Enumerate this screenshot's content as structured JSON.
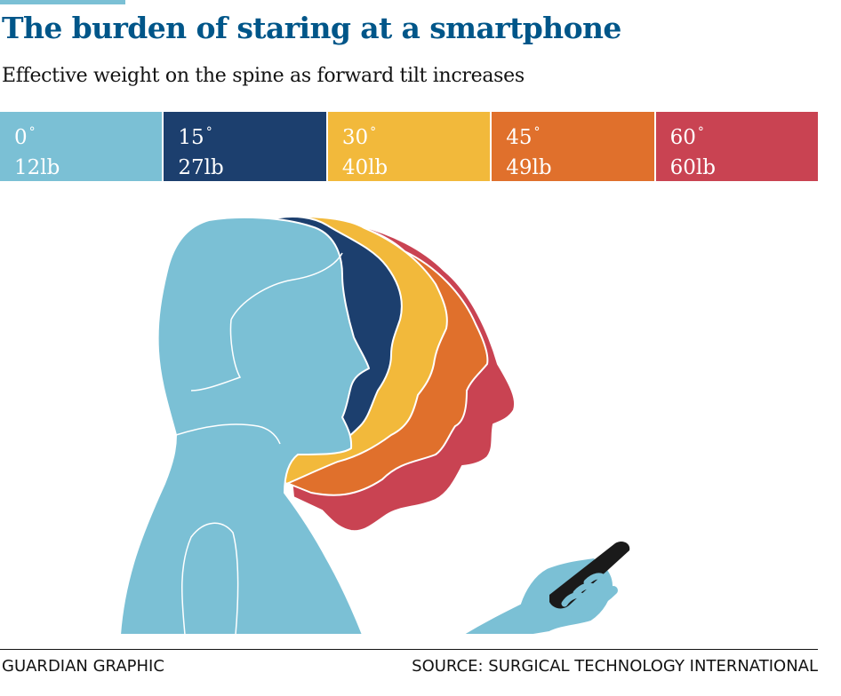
{
  "title": "The burden of staring at a smartphone",
  "subtitle": "Effective weight on the spine as forward tilt increases",
  "chart_data": {
    "type": "table",
    "title": "The burden of staring at a smartphone",
    "subtitle": "Effective weight on the spine as forward tilt increases",
    "entries": [
      {
        "angle": "0",
        "weight": "12lb",
        "color": "#7bc0d5"
      },
      {
        "angle": "15",
        "weight": "27lb",
        "color": "#1c3f6e"
      },
      {
        "angle": "30",
        "weight": "40lb",
        "color": "#f2b93b"
      },
      {
        "angle": "45",
        "weight": "49lb",
        "color": "#e0702c"
      },
      {
        "angle": "60",
        "weight": "60lb",
        "color": "#c94352"
      }
    ],
    "degree_symbol": "°",
    "legend_placement": "top"
  },
  "illustration": {
    "icon": "person-head-tilt-silhouettes-icon",
    "phone_icon": "smartphone-icon"
  },
  "footer": {
    "credit": "GUARDIAN GRAPHIC",
    "source": "SOURCE: SURGICAL TECHNOLOGY INTERNATIONAL"
  },
  "colors": {
    "accent": "#7bc0d5",
    "title": "#005689",
    "text": "#121212"
  }
}
